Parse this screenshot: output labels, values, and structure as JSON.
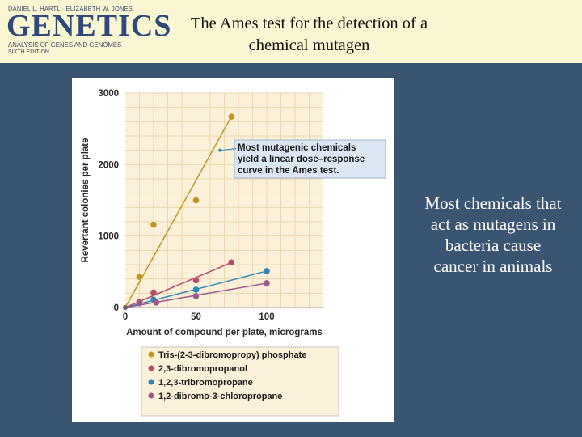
{
  "header": {
    "logo": {
      "authors": "DANIEL L. HARTL · ELIZABETH W. JONES",
      "title": "GENETICS",
      "subtitle": "ANALYSIS OF GENES AND GENOMES",
      "edition": "SIXTH EDITION"
    },
    "title_line1": "The Ames test for the detection of a",
    "title_line2": "chemical mutagen"
  },
  "side_text": {
    "line1": "Most chemicals that",
    "line2": "act as mutagens in",
    "line3": "bacteria cause",
    "line4": "cancer in animals"
  },
  "colors": {
    "background": "#3a5572",
    "header_bg": "#fbf6d2",
    "plot_bg": "#fbf0d8",
    "grid": "#ead9b2",
    "callout_bg": "#dde7f3"
  },
  "chart_data": {
    "type": "scatter",
    "title": "",
    "xlabel": "Amount of compound per plate, micrograms",
    "ylabel": "Revertant colonies per plate",
    "xlim": [
      0,
      140
    ],
    "ylim": [
      0,
      3000
    ],
    "x_ticks": [
      "0",
      "50",
      "100"
    ],
    "y_ticks": [
      "0",
      "1000",
      "2000",
      "3000"
    ],
    "grid": true,
    "legend_position": "below",
    "annotation": {
      "line1": "Most mutagenic chemicals",
      "line2": "yield a linear dose–response",
      "line3": "curve in the Ames test.",
      "points_to": [
        67,
        2200
      ]
    },
    "series": [
      {
        "name": "Tris-(2-3-dibromopropy) phosphate",
        "color": "#c0961e",
        "points": [
          [
            10,
            430
          ],
          [
            20,
            1160
          ],
          [
            50,
            1500
          ],
          [
            75,
            2670
          ]
        ],
        "fit": [
          [
            0,
            0
          ],
          [
            75,
            2670
          ]
        ]
      },
      {
        "name": "2,3-dibromopropanol",
        "color": "#b54a6c",
        "points": [
          [
            10,
            80
          ],
          [
            20,
            210
          ],
          [
            50,
            380
          ],
          [
            75,
            630
          ]
        ],
        "fit": [
          [
            0,
            0
          ],
          [
            75,
            630
          ]
        ]
      },
      {
        "name": "1,2,3-tribromopropane",
        "color": "#2f86b8",
        "points": [
          [
            20,
            110
          ],
          [
            50,
            250
          ],
          [
            100,
            510
          ]
        ],
        "fit": [
          [
            0,
            0
          ],
          [
            100,
            510
          ]
        ]
      },
      {
        "name": "1,2-dibromo-3-chloropropane",
        "color": "#9a5a8e",
        "points": [
          [
            10,
            60
          ],
          [
            22,
            70
          ],
          [
            50,
            160
          ],
          [
            100,
            340
          ]
        ],
        "fit": [
          [
            0,
            0
          ],
          [
            100,
            340
          ]
        ]
      }
    ]
  }
}
